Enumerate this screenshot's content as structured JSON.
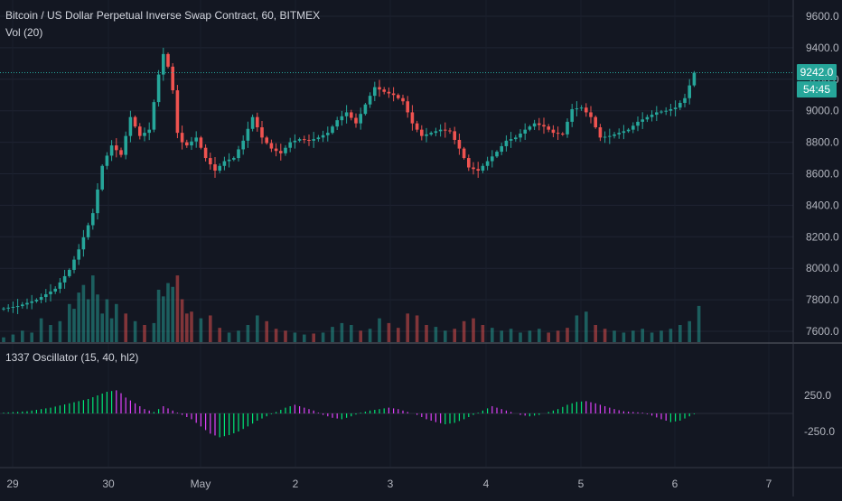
{
  "chart_data": [
    {
      "type": "candlestick",
      "title": "Bitcoin / US Dollar Perpetual Inverse Swap Contract, 60, BITMEX",
      "interval": "60",
      "exchange": "BITMEX",
      "y_ticks": [
        "9600.0",
        "9400.0",
        "9200.0",
        "9000.0",
        "8800.0",
        "8600.0",
        "8400.0",
        "8200.0",
        "8000.0",
        "7800.0",
        "7600.0"
      ],
      "ylim": [
        7540,
        9680
      ],
      "x_ticks": [
        "29",
        "30",
        "May",
        "2",
        "3",
        "4",
        "5",
        "6",
        "7"
      ],
      "last_price": "9242.0",
      "countdown": "54:45",
      "up_color": "#26a69a",
      "down_color": "#ef5350",
      "series_close": [
        [
          0,
          7740
        ],
        [
          4,
          7760
        ],
        [
          8,
          7800
        ],
        [
          12,
          7870
        ],
        [
          15,
          7990
        ],
        [
          17,
          8120
        ],
        [
          20,
          8350
        ],
        [
          22,
          8650
        ],
        [
          24,
          8780
        ],
        [
          26,
          8720
        ],
        [
          28,
          8960
        ],
        [
          30,
          8840
        ],
        [
          32,
          8880
        ],
        [
          34,
          9230
        ],
        [
          35,
          9360
        ],
        [
          36,
          9280
        ],
        [
          37,
          9130
        ],
        [
          38,
          8860
        ],
        [
          39,
          8800
        ],
        [
          40,
          8780
        ],
        [
          42,
          8830
        ],
        [
          44,
          8700
        ],
        [
          46,
          8620
        ],
        [
          48,
          8680
        ],
        [
          50,
          8700
        ],
        [
          52,
          8810
        ],
        [
          54,
          8960
        ],
        [
          56,
          8830
        ],
        [
          58,
          8760
        ],
        [
          60,
          8730
        ],
        [
          62,
          8800
        ],
        [
          64,
          8820
        ],
        [
          66,
          8810
        ],
        [
          68,
          8830
        ],
        [
          70,
          8860
        ],
        [
          72,
          8940
        ],
        [
          74,
          8990
        ],
        [
          76,
          8920
        ],
        [
          78,
          9040
        ],
        [
          80,
          9150
        ],
        [
          82,
          9120
        ],
        [
          84,
          9100
        ],
        [
          86,
          9060
        ],
        [
          88,
          8920
        ],
        [
          90,
          8840
        ],
        [
          92,
          8860
        ],
        [
          94,
          8880
        ],
        [
          96,
          8870
        ],
        [
          98,
          8760
        ],
        [
          100,
          8640
        ],
        [
          102,
          8620
        ],
        [
          104,
          8680
        ],
        [
          106,
          8740
        ],
        [
          108,
          8810
        ],
        [
          110,
          8830
        ],
        [
          112,
          8880
        ],
        [
          114,
          8920
        ],
        [
          116,
          8900
        ],
        [
          118,
          8860
        ],
        [
          120,
          8850
        ],
        [
          122,
          9010
        ],
        [
          124,
          9020
        ],
        [
          126,
          8960
        ],
        [
          128,
          8830
        ],
        [
          130,
          8840
        ],
        [
          132,
          8860
        ],
        [
          134,
          8880
        ],
        [
          136,
          8930
        ],
        [
          138,
          8960
        ],
        [
          140,
          8990
        ],
        [
          142,
          9000
        ],
        [
          144,
          9020
        ],
        [
          146,
          9080
        ],
        [
          148,
          9242
        ]
      ],
      "volume_label": "Vol (20)",
      "volume_length": 20,
      "volume": [
        [
          0,
          5
        ],
        [
          2,
          8
        ],
        [
          4,
          12
        ],
        [
          6,
          10
        ],
        [
          8,
          25
        ],
        [
          10,
          18
        ],
        [
          12,
          22
        ],
        [
          14,
          40
        ],
        [
          15,
          35
        ],
        [
          16,
          52
        ],
        [
          17,
          60
        ],
        [
          18,
          45
        ],
        [
          19,
          70
        ],
        [
          20,
          50
        ],
        [
          21,
          30
        ],
        [
          22,
          45
        ],
        [
          23,
          25
        ],
        [
          24,
          40
        ],
        [
          26,
          30
        ],
        [
          28,
          22
        ],
        [
          30,
          18
        ],
        [
          32,
          20
        ],
        [
          33,
          55
        ],
        [
          34,
          48
        ],
        [
          35,
          62
        ],
        [
          36,
          58
        ],
        [
          37,
          70
        ],
        [
          38,
          45
        ],
        [
          39,
          30
        ],
        [
          40,
          32
        ],
        [
          42,
          25
        ],
        [
          44,
          28
        ],
        [
          46,
          15
        ],
        [
          48,
          10
        ],
        [
          50,
          12
        ],
        [
          52,
          18
        ],
        [
          54,
          28
        ],
        [
          56,
          22
        ],
        [
          58,
          14
        ],
        [
          60,
          12
        ],
        [
          62,
          10
        ],
        [
          64,
          8
        ],
        [
          66,
          9
        ],
        [
          68,
          10
        ],
        [
          70,
          16
        ],
        [
          72,
          20
        ],
        [
          74,
          18
        ],
        [
          76,
          12
        ],
        [
          78,
          14
        ],
        [
          80,
          25
        ],
        [
          82,
          20
        ],
        [
          84,
          15
        ],
        [
          86,
          30
        ],
        [
          88,
          28
        ],
        [
          90,
          18
        ],
        [
          92,
          16
        ],
        [
          94,
          12
        ],
        [
          96,
          14
        ],
        [
          98,
          22
        ],
        [
          100,
          25
        ],
        [
          102,
          18
        ],
        [
          104,
          15
        ],
        [
          106,
          12
        ],
        [
          108,
          14
        ],
        [
          110,
          10
        ],
        [
          112,
          12
        ],
        [
          114,
          14
        ],
        [
          116,
          10
        ],
        [
          118,
          12
        ],
        [
          120,
          15
        ],
        [
          122,
          28
        ],
        [
          124,
          32
        ],
        [
          126,
          18
        ],
        [
          128,
          14
        ],
        [
          130,
          12
        ],
        [
          132,
          10
        ],
        [
          134,
          12
        ],
        [
          136,
          14
        ],
        [
          138,
          10
        ],
        [
          140,
          12
        ],
        [
          142,
          14
        ],
        [
          144,
          18
        ],
        [
          146,
          22
        ],
        [
          148,
          38
        ]
      ]
    },
    {
      "type": "histogram",
      "title": "1337 Oscillator (15, 40, hl2)",
      "y_ticks": [
        "250.0",
        "-250.0"
      ],
      "ylim": [
        -370,
        370
      ],
      "positive_color": "#00e676",
      "negative_color": "#e040fb",
      "values": [
        [
          0,
          10
        ],
        [
          5,
          30
        ],
        [
          10,
          80
        ],
        [
          14,
          140
        ],
        [
          18,
          200
        ],
        [
          20,
          250
        ],
        [
          22,
          300
        ],
        [
          24,
          320
        ],
        [
          25,
          280
        ],
        [
          26,
          220
        ],
        [
          28,
          140
        ],
        [
          30,
          60
        ],
        [
          32,
          20
        ],
        [
          34,
          100
        ],
        [
          36,
          40
        ],
        [
          38,
          -20
        ],
        [
          40,
          -80
        ],
        [
          42,
          -180
        ],
        [
          44,
          -280
        ],
        [
          46,
          -330
        ],
        [
          48,
          -300
        ],
        [
          50,
          -250
        ],
        [
          52,
          -180
        ],
        [
          54,
          -100
        ],
        [
          56,
          -40
        ],
        [
          58,
          20
        ],
        [
          60,
          80
        ],
        [
          62,
          120
        ],
        [
          64,
          80
        ],
        [
          66,
          40
        ],
        [
          68,
          -20
        ],
        [
          70,
          -60
        ],
        [
          72,
          -80
        ],
        [
          74,
          -40
        ],
        [
          76,
          10
        ],
        [
          78,
          40
        ],
        [
          80,
          60
        ],
        [
          82,
          80
        ],
        [
          84,
          60
        ],
        [
          86,
          20
        ],
        [
          88,
          -20
        ],
        [
          90,
          -80
        ],
        [
          92,
          -120
        ],
        [
          94,
          -150
        ],
        [
          96,
          -130
        ],
        [
          98,
          -80
        ],
        [
          100,
          -20
        ],
        [
          102,
          40
        ],
        [
          104,
          100
        ],
        [
          106,
          60
        ],
        [
          108,
          20
        ],
        [
          110,
          -20
        ],
        [
          112,
          -40
        ],
        [
          114,
          -20
        ],
        [
          116,
          20
        ],
        [
          118,
          60
        ],
        [
          120,
          120
        ],
        [
          122,
          160
        ],
        [
          124,
          170
        ],
        [
          126,
          140
        ],
        [
          128,
          100
        ],
        [
          130,
          60
        ],
        [
          132,
          30
        ],
        [
          134,
          20
        ],
        [
          136,
          10
        ],
        [
          138,
          -30
        ],
        [
          140,
          -80
        ],
        [
          142,
          -120
        ],
        [
          144,
          -100
        ],
        [
          146,
          -40
        ],
        [
          148,
          20
        ]
      ]
    }
  ]
}
